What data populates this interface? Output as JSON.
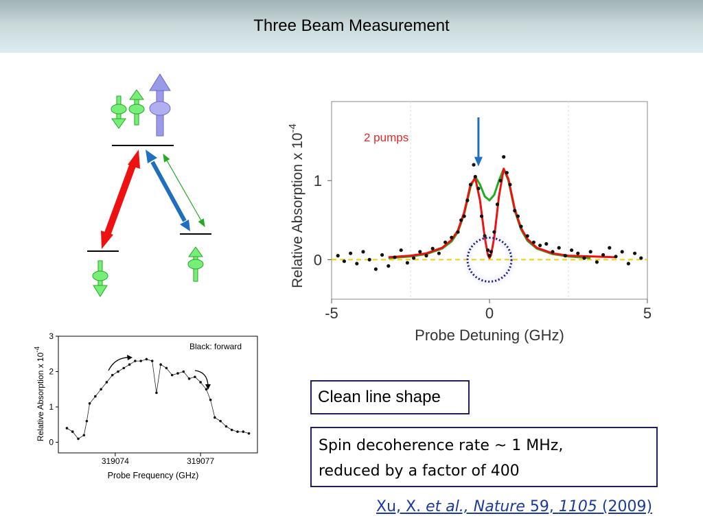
{
  "title": "Three Beam Measurement",
  "clean_box": "Clean line shape",
  "spin_box": {
    "line1": "Spin decoherence rate ~ 1 MHz,",
    "line2": "reduced by a factor of 400"
  },
  "citation": {
    "authors": "Xu, X. ",
    "etal": "et al., Nature",
    "volume": " 59, ",
    "page": "1105",
    "year": "  (2009)"
  },
  "colors": {
    "red": "#ee1111",
    "blue": "#1f6fbf",
    "green": "#22aa22",
    "spin_green": "#77ee77",
    "spin_blue": "#9a9ae6",
    "zero_line": "#f0d000",
    "circle": "#1a1a7a"
  },
  "level_diagram": {
    "icons": [
      "spin-down-icon",
      "spin-up-icon",
      "large-spin-up-icon"
    ]
  },
  "chart_data": [
    {
      "type": "scatter",
      "xlabel": "Probe Detuning (GHz)",
      "ylabel": "Relative Absorption x 10",
      "ylabel_exponent": "-4",
      "annotation": "2 pumps",
      "xlim": [
        -5,
        5
      ],
      "ylim": [
        -0.5,
        2
      ],
      "xticks": [
        -5,
        0,
        5
      ],
      "yticks": [
        0,
        1
      ],
      "series": [
        {
          "color": "green",
          "x": [
            -3.2,
            -2.5,
            -2.0,
            -1.5,
            -1.2,
            -1.0,
            -0.8,
            -0.6,
            -0.45,
            -0.3,
            -0.15,
            0,
            0.15,
            0.3,
            0.45,
            0.6,
            0.8,
            1.0,
            1.2,
            1.5,
            2.0,
            2.5,
            3.2
          ],
          "y": [
            0.02,
            0.04,
            0.07,
            0.14,
            0.23,
            0.35,
            0.58,
            0.92,
            1.05,
            0.95,
            0.8,
            0.75,
            0.82,
            1.0,
            1.15,
            1.0,
            0.62,
            0.38,
            0.24,
            0.14,
            0.07,
            0.04,
            0.02
          ]
        },
        {
          "color": "red",
          "x": [
            -3.2,
            -2.5,
            -2.0,
            -1.5,
            -1.2,
            -1.0,
            -0.8,
            -0.6,
            -0.45,
            -0.3,
            -0.15,
            -0.05,
            0,
            0.05,
            0.15,
            0.3,
            0.45,
            0.6,
            0.8,
            1.0,
            1.2,
            1.5,
            2.0,
            2.5,
            4.0
          ],
          "y": [
            0.03,
            0.05,
            0.08,
            0.15,
            0.25,
            0.37,
            0.6,
            0.95,
            1.03,
            0.75,
            0.28,
            0.06,
            0.02,
            0.06,
            0.28,
            0.8,
            1.15,
            1.02,
            0.64,
            0.4,
            0.26,
            0.15,
            0.08,
            0.05,
            0.03
          ]
        },
        {
          "color": "black",
          "x": [
            -4.8,
            -4.6,
            -4.4,
            -4.2,
            -4.0,
            -3.8,
            -3.6,
            -3.4,
            -3.2,
            -3.0,
            -2.8,
            -2.6,
            -2.4,
            -2.2,
            -2.0,
            -1.8,
            -1.6,
            -1.4,
            -1.2,
            -1.0,
            -0.9,
            -0.8,
            -0.7,
            -0.6,
            -0.5,
            -0.45,
            -0.35,
            -0.25,
            -0.15,
            -0.05,
            0,
            0.05,
            0.15,
            0.25,
            0.35,
            0.45,
            0.55,
            0.65,
            0.8,
            0.9,
            1.0,
            1.2,
            1.4,
            1.6,
            1.8,
            2.0,
            2.2,
            2.4,
            2.6,
            2.8,
            3.0,
            3.2,
            3.4,
            3.6,
            3.8,
            4.0,
            4.2,
            4.4,
            4.6,
            4.8
          ],
          "y": [
            0.05,
            -0.02,
            0.08,
            -0.05,
            0.1,
            0.0,
            -0.12,
            0.06,
            -0.08,
            0.03,
            0.12,
            -0.04,
            0.02,
            0.1,
            0.05,
            0.14,
            0.08,
            0.22,
            0.28,
            0.35,
            0.5,
            0.55,
            0.75,
            0.95,
            1.2,
            1.05,
            0.9,
            0.55,
            0.3,
            0.12,
            0.05,
            0.1,
            0.35,
            0.7,
            1.0,
            1.3,
            1.1,
            0.95,
            0.62,
            0.55,
            0.42,
            0.3,
            0.22,
            0.18,
            0.2,
            0.1,
            0.15,
            0.05,
            0.12,
            0.08,
            0.02,
            0.1,
            -0.03,
            0.06,
            0.15,
            0.04,
            0.1,
            -0.05,
            0.08,
            0.02
          ]
        }
      ]
    },
    {
      "type": "scatter",
      "xlabel": "Probe Frequency (GHz)",
      "ylabel": "Relative Absorption x 10",
      "ylabel_exponent": "-4",
      "legend": "Black: forward",
      "xlim": [
        319072,
        319079
      ],
      "ylim": [
        -0.3,
        3
      ],
      "xticks": [
        319074,
        319077
      ],
      "yticks": [
        0,
        1,
        2,
        3
      ],
      "series": [
        {
          "color": "black",
          "x": [
            319072.3,
            319072.5,
            319072.7,
            319072.9,
            319073.0,
            319073.1,
            319073.3,
            319073.5,
            319073.7,
            319073.9,
            319074.1,
            319074.3,
            319074.5,
            319074.7,
            319074.9,
            319075.1,
            319075.3,
            319075.45,
            319075.6,
            319075.8,
            319076.0,
            319076.2,
            319076.4,
            319076.6,
            319076.8,
            319077.0,
            319077.2,
            319077.35,
            319077.5,
            319077.7,
            319077.9,
            319078.1,
            319078.3,
            319078.5,
            319078.7
          ],
          "y": [
            0.4,
            0.3,
            0.1,
            0.2,
            0.6,
            1.1,
            1.3,
            1.5,
            1.7,
            1.9,
            2.0,
            2.1,
            2.2,
            2.3,
            2.3,
            2.35,
            2.3,
            1.4,
            2.2,
            2.1,
            1.9,
            1.95,
            2.0,
            1.8,
            1.85,
            1.7,
            1.5,
            1.2,
            0.7,
            0.6,
            0.45,
            0.35,
            0.3,
            0.3,
            0.25
          ]
        }
      ]
    }
  ]
}
